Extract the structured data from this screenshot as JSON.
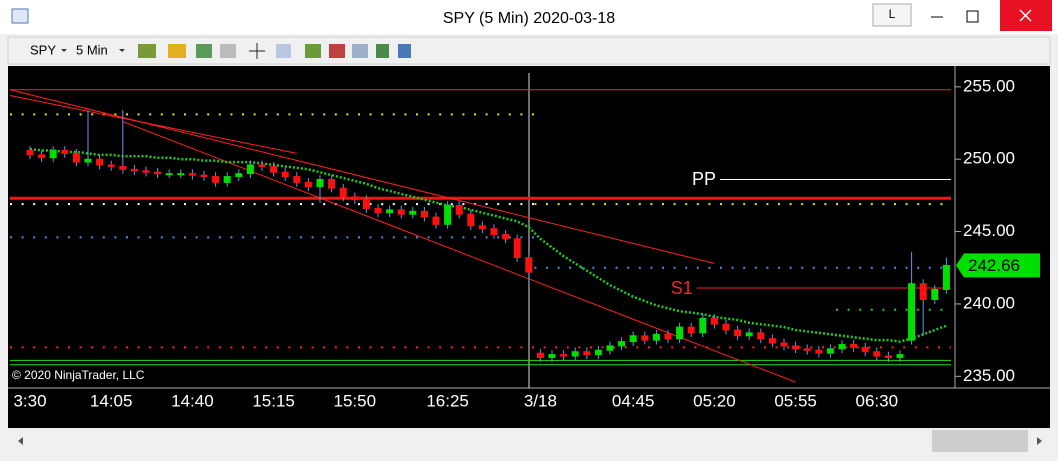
{
  "window": {
    "title": "SPY (5 Min)  2020-03-18",
    "button_label": "L"
  },
  "toolbar": {
    "instrument": "SPY",
    "interval": "5 Min"
  },
  "chart_data": {
    "type": "candlestick",
    "copyright": "© 2020 NinjaTrader, LLC",
    "categories": [
      "3:30",
      null,
      null,
      null,
      null,
      null,
      null,
      "14:05",
      null,
      null,
      null,
      null,
      null,
      null,
      "14:40",
      null,
      null,
      null,
      null,
      null,
      null,
      "15:15",
      null,
      null,
      null,
      null,
      null,
      null,
      "15:50",
      null,
      null,
      null,
      null,
      null,
      null,
      null,
      "16:25",
      null,
      null,
      null,
      null,
      null,
      null,
      null,
      "3/18",
      null,
      null,
      null,
      null,
      null,
      null,
      null,
      "04:45",
      null,
      null,
      null,
      null,
      null,
      null,
      "05:20",
      null,
      null,
      null,
      null,
      null,
      null,
      "05:55",
      null,
      null,
      null,
      null,
      null,
      null,
      "06:30",
      null,
      null,
      null,
      null,
      null,
      null
    ],
    "open": [
      250.6,
      250.3,
      250.1,
      250.6,
      250.4,
      249.8,
      250.0,
      249.6,
      249.5,
      249.3,
      249.2,
      249.1,
      249.0,
      249.0,
      249.0,
      248.9,
      248.8,
      248.4,
      248.8,
      249.0,
      249.6,
      249.5,
      249.1,
      248.8,
      248.4,
      248.1,
      248.6,
      248.0,
      247.4,
      247.2,
      246.6,
      246.3,
      246.5,
      246.2,
      246.4,
      246.0,
      245.5,
      246.8,
      246.2,
      245.4,
      245.2,
      244.8,
      244.5,
      243.2,
      236.6,
      236.3,
      236.5,
      236.4,
      236.7,
      236.5,
      236.8,
      237.1,
      237.4,
      237.8,
      237.5,
      237.9,
      237.6,
      238.4,
      238.0,
      239.0,
      238.6,
      238.2,
      237.8,
      238.0,
      237.6,
      237.3,
      237.1,
      236.9,
      236.8,
      236.6,
      236.9,
      237.2,
      237.0,
      236.7,
      236.4,
      236.3,
      237.5,
      241.4,
      240.3,
      241.0
    ],
    "high": [
      250.9,
      250.6,
      250.9,
      250.9,
      250.7,
      253.4,
      250.3,
      249.9,
      253.4,
      249.6,
      249.5,
      249.4,
      249.3,
      249.3,
      249.3,
      249.2,
      249.1,
      249.1,
      249.3,
      249.9,
      249.9,
      249.8,
      249.4,
      249.1,
      248.7,
      248.9,
      248.9,
      248.3,
      247.7,
      247.5,
      246.9,
      246.8,
      246.8,
      246.7,
      246.7,
      246.3,
      247.1,
      247.1,
      246.5,
      245.7,
      245.5,
      245.1,
      244.8,
      243.5,
      236.9,
      236.8,
      236.8,
      237.0,
      237.0,
      237.1,
      237.4,
      237.7,
      238.1,
      238.1,
      238.2,
      238.2,
      238.7,
      238.7,
      239.3,
      239.3,
      238.9,
      238.5,
      238.3,
      238.3,
      237.9,
      237.6,
      237.4,
      237.2,
      237.1,
      237.2,
      237.5,
      237.5,
      237.3,
      237.0,
      236.7,
      236.8,
      243.6,
      241.7,
      241.3,
      243.2
    ],
    "low": [
      250.0,
      249.8,
      249.8,
      250.1,
      249.5,
      249.5,
      249.3,
      249.2,
      249.0,
      248.9,
      248.8,
      248.7,
      248.7,
      248.7,
      248.6,
      248.5,
      248.1,
      248.1,
      248.5,
      248.7,
      249.2,
      248.8,
      248.5,
      248.1,
      247.8,
      247.0,
      247.7,
      247.1,
      246.9,
      246.3,
      246.0,
      246.0,
      245.9,
      245.9,
      245.7,
      245.2,
      245.2,
      245.9,
      245.1,
      244.9,
      244.5,
      244.2,
      242.9,
      241.4,
      236.0,
      236.0,
      236.1,
      236.1,
      236.2,
      236.2,
      236.5,
      236.8,
      237.1,
      237.2,
      237.2,
      237.3,
      237.3,
      237.7,
      237.7,
      238.3,
      237.9,
      237.5,
      237.5,
      237.3,
      237.0,
      236.8,
      236.6,
      236.5,
      236.3,
      236.3,
      236.6,
      236.7,
      236.4,
      236.1,
      236.0,
      236.0,
      237.2,
      237.8,
      240.0,
      240.7
    ],
    "close": [
      250.3,
      250.1,
      250.6,
      250.4,
      249.8,
      250.0,
      249.6,
      249.5,
      249.3,
      249.2,
      249.1,
      249.0,
      249.0,
      249.0,
      248.9,
      248.8,
      248.4,
      248.8,
      249.0,
      249.6,
      249.5,
      249.1,
      248.8,
      248.4,
      248.1,
      248.6,
      248.0,
      247.4,
      247.2,
      246.6,
      246.3,
      246.5,
      246.2,
      246.4,
      246.0,
      245.5,
      246.8,
      246.2,
      245.4,
      245.2,
      244.8,
      244.5,
      243.2,
      242.2,
      236.3,
      236.5,
      236.4,
      236.7,
      236.5,
      236.8,
      237.1,
      237.4,
      237.8,
      237.5,
      237.9,
      237.6,
      238.4,
      238.0,
      239.0,
      238.6,
      238.2,
      237.8,
      238.0,
      237.6,
      237.3,
      237.1,
      236.9,
      236.8,
      236.6,
      236.9,
      237.2,
      237.0,
      236.7,
      236.4,
      236.3,
      236.5,
      241.4,
      240.3,
      241.0,
      242.66
    ],
    "up_color": "#00e000",
    "down_color": "#ff1010",
    "wick_color": "#6495ed",
    "moving_average": {
      "color": "#22cc22",
      "values": [
        250.7,
        250.6,
        250.6,
        250.5,
        250.5,
        250.4,
        250.3,
        250.3,
        250.2,
        250.2,
        250.2,
        250.1,
        250.1,
        250.0,
        250.0,
        249.9,
        249.9,
        249.8,
        249.8,
        249.8,
        249.7,
        249.6,
        249.5,
        249.4,
        249.3,
        249.1,
        248.9,
        248.7,
        248.5,
        248.3,
        248.0,
        247.8,
        247.6,
        247.4,
        247.2,
        247.0,
        246.8,
        246.7,
        246.5,
        246.3,
        246.1,
        245.9,
        245.7,
        245.3,
        244.5,
        243.9,
        243.3,
        242.8,
        242.3,
        241.8,
        241.3,
        240.9,
        240.5,
        240.2,
        239.9,
        239.7,
        239.5,
        239.4,
        239.3,
        239.1,
        239.0,
        238.9,
        238.7,
        238.6,
        238.5,
        238.4,
        238.2,
        238.1,
        238.0,
        237.9,
        237.8,
        237.7,
        237.6,
        237.5,
        237.5,
        237.4,
        237.6,
        237.9,
        238.2,
        238.5
      ]
    },
    "levels": [
      {
        "value": 254.8,
        "color": "#ff2020",
        "style": "solid",
        "from": 0,
        "to": 79
      },
      {
        "value": 253.1,
        "color": "#e8e800",
        "style": "dotted",
        "from": 0,
        "to": 43
      },
      {
        "value": 247.3,
        "color": "#ff1010",
        "style": "thick",
        "from": 0,
        "to": 79
      },
      {
        "value": 246.9,
        "color": "#ffffff",
        "style": "dotted",
        "from": 0,
        "to": 43
      },
      {
        "value": 246.9,
        "color": "#e8e800",
        "style": "dotted",
        "from": 44,
        "to": 79
      },
      {
        "value": 244.6,
        "color": "#4a90e2",
        "style": "dotted",
        "from": 0,
        "to": 43
      },
      {
        "value": 242.5,
        "color": "#4a90e2",
        "style": "dotted",
        "from": 44,
        "to": 79
      },
      {
        "value": 248.6,
        "color": "#ffffff",
        "style": "solid",
        "from": 60,
        "to": 79,
        "label": "PP"
      },
      {
        "value": 241.1,
        "color": "#ff2020",
        "style": "solid",
        "from": 58,
        "to": 79,
        "label": "S1"
      },
      {
        "value": 239.6,
        "color": "#22cc22",
        "style": "dotted",
        "from": 70,
        "to": 79
      },
      {
        "value": 237.0,
        "color": "#ff2020",
        "style": "dotted",
        "from": 0,
        "to": 79
      },
      {
        "value": 236.1,
        "color": "#22dd22",
        "style": "solid",
        "from": 0,
        "to": 79
      },
      {
        "value": 235.8,
        "color": "#22dd22",
        "style": "solid",
        "from": 0,
        "to": 79
      }
    ],
    "trend_lines": [
      {
        "color": "#ff2020",
        "x": [
          0,
          23
        ],
        "y": [
          254.4,
          250.4
        ]
      },
      {
        "color": "#ff2020",
        "x": [
          0,
          59
        ],
        "y": [
          254.8,
          242.8
        ]
      },
      {
        "color": "#ff2020",
        "x": [
          8,
          66
        ],
        "y": [
          252.6,
          234.6
        ]
      }
    ],
    "ylim": [
      234.4,
      256.3
    ],
    "yticks": [
      {
        "value": 235,
        "label": "235.00"
      },
      {
        "value": 240,
        "label": "240.00"
      },
      {
        "value": 245,
        "label": "245.00"
      },
      {
        "value": 250,
        "label": "250.00"
      },
      {
        "value": 255,
        "label": "255.00"
      }
    ]
  }
}
